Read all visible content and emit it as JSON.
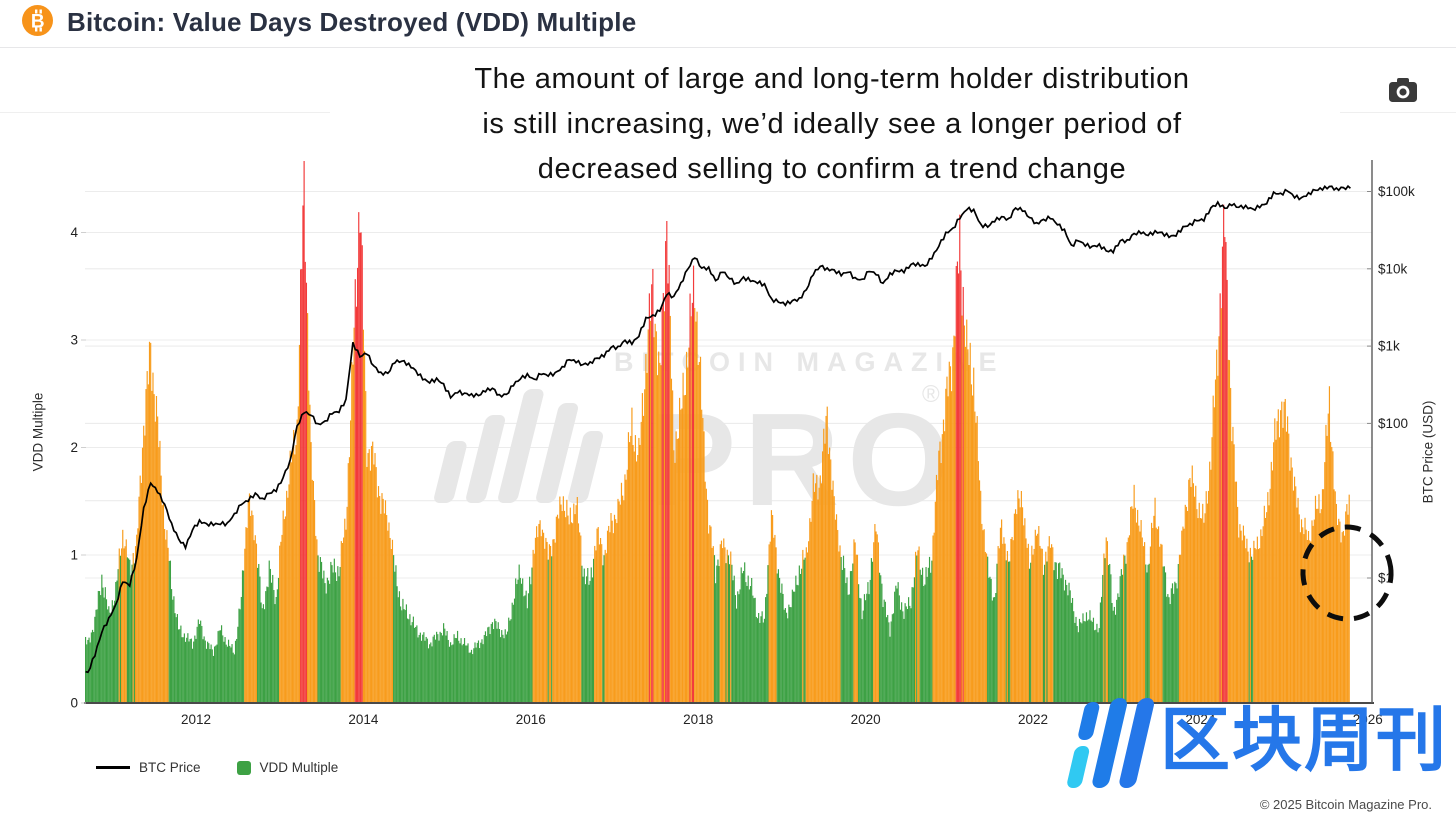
{
  "header": {
    "title": "Bitcoin: Value Days Destroyed (VDD) Multiple"
  },
  "toolbar": {
    "camera_icon": "camera-icon"
  },
  "annotation": {
    "lines": [
      "The amount of large and long-term holder distribution",
      "is still increasing, we’d ideally see a longer period of",
      "decreased selling to confirm a trend change"
    ]
  },
  "watermark": {
    "line1": "BITCOIN MAGAZINE",
    "line2": "PRO",
    "registered": "®"
  },
  "cn_watermark": {
    "text": "区块周刊"
  },
  "legend": [
    {
      "label": "BTC Price",
      "marker": "line",
      "color": "#000000"
    },
    {
      "label": "VDD Multiple",
      "marker": "square",
      "color": "#3DA144"
    }
  ],
  "footer": {
    "copyright": "© 2025 Bitcoin Magazine Pro."
  },
  "axes": {
    "left": {
      "title": "VDD Multiple",
      "ticks": [
        4,
        3,
        2,
        1,
        0
      ]
    },
    "right": {
      "title": "BTC Price (USD)",
      "ticks": [
        {
          "label": "$100k",
          "value": 100000
        },
        {
          "label": "$10k",
          "value": 10000
        },
        {
          "label": "$1k",
          "value": 1000
        },
        {
          "label": "$100",
          "value": 100
        },
        {
          "label": "$1",
          "value": 1
        }
      ]
    },
    "x": {
      "ticks": [
        2012,
        2014,
        2016,
        2018,
        2020,
        2022,
        2024,
        2026
      ]
    }
  },
  "colors": {
    "bar_green": "#3DA144",
    "bar_orange": "#F89C1C",
    "bar_red": "#F23B3B",
    "price_line": "#000000",
    "grid": "#ececec",
    "axis_line": "#4a4a4a",
    "watermark_gray": "#e7e7e7",
    "bitcoin_orange": "#F7931A",
    "cn_blue": "#2577e9",
    "cn_cyan": "#30c9f2"
  },
  "chart_data": {
    "type": "mixed",
    "x_start_month": "2010-07",
    "interval": "monthly",
    "x_range_years": [
      2010.67,
      2026.06
    ],
    "left_axis": {
      "label": "VDD Multiple",
      "ylim": [
        0,
        4.67
      ],
      "scale": "linear"
    },
    "right_axis": {
      "label": "BTC Price (USD)",
      "ylim": [
        0.024,
        250000
      ],
      "scale": "log"
    },
    "color_rule": {
      "green": "VDD < 1",
      "orange": "1 <= VDD < 3.3",
      "red": "VDD >= 3.3"
    },
    "highlight": "dashed circle around most recent months (mid/late 2025)",
    "series": [
      {
        "name": "BTC Price",
        "type": "line",
        "unit": "USD",
        "values": [
          0.06,
          0.06,
          0.06,
          0.1,
          0.2,
          0.3,
          0.45,
          0.9,
          0.8,
          1.8,
          8.0,
          17.0,
          13.0,
          9.0,
          5.0,
          3.2,
          2.5,
          4.2,
          5.5,
          5.0,
          4.9,
          5.0,
          5.1,
          6.7,
          9.0,
          10.0,
          12.4,
          10.5,
          12.5,
          13.5,
          20,
          33,
          93,
          139,
          128,
          97,
          106,
          135,
          141,
          204,
          1100,
          732,
          800,
          550,
          450,
          445,
          620,
          640,
          585,
          480,
          375,
          338,
          378,
          320,
          217,
          254,
          244,
          236,
          230,
          263,
          284,
          230,
          236,
          314,
          377,
          430,
          368,
          437,
          416,
          448,
          531,
          673,
          624,
          575,
          610,
          700,
          745,
          963,
          970,
          1180,
          1080,
          1350,
          2300,
          2480,
          2875,
          4700,
          4360,
          6450,
          9900,
          14100,
          10200,
          10300,
          7000,
          9240,
          7500,
          6400,
          7750,
          7000,
          6600,
          6300,
          4050,
          3740,
          3450,
          3850,
          4100,
          5350,
          8550,
          10800,
          10000,
          9600,
          8300,
          9150,
          7550,
          7200,
          9350,
          8550,
          6440,
          8650,
          9450,
          9140,
          11350,
          11650,
          10780,
          13800,
          19700,
          29000,
          33100,
          45100,
          58800,
          57750,
          37300,
          35000,
          41500,
          47100,
          43800,
          61300,
          57000,
          46200,
          38500,
          43200,
          45500,
          37650,
          31800,
          19900,
          23300,
          20050,
          19400,
          20500,
          17150,
          16550,
          23100,
          23150,
          28500,
          29250,
          27200,
          30450,
          29250,
          25950,
          26950,
          34650,
          37700,
          42250,
          42550,
          61150,
          71300,
          60650,
          67500,
          62650,
          64600,
          58950,
          63300,
          70200,
          96400,
          93400,
          102400,
          84350,
          82550,
          94200,
          104600,
          107100,
          115800,
          108200,
          112000,
          110000
        ]
      },
      {
        "name": "VDD Multiple",
        "type": "bar",
        "values": [
          0.35,
          0.45,
          0.4,
          0.55,
          0.85,
          0.6,
          0.75,
          1.2,
          0.9,
          1.1,
          2.2,
          2.9,
          2.2,
          1.3,
          0.8,
          0.5,
          0.45,
          0.4,
          0.55,
          0.4,
          0.35,
          0.5,
          0.4,
          0.35,
          0.7,
          1.5,
          1.2,
          0.6,
          0.9,
          0.7,
          1.3,
          1.8,
          2.2,
          4.5,
          1.9,
          1.0,
          0.8,
          0.9,
          0.9,
          1.3,
          2.8,
          4.35,
          2.0,
          1.9,
          1.5,
          1.35,
          0.9,
          0.65,
          0.6,
          0.5,
          0.45,
          0.4,
          0.45,
          0.5,
          0.4,
          0.45,
          0.4,
          0.35,
          0.4,
          0.45,
          0.55,
          0.5,
          0.45,
          0.7,
          0.9,
          0.65,
          1.1,
          1.3,
          1.0,
          1.2,
          1.55,
          1.3,
          1.5,
          0.9,
          0.8,
          1.2,
          1.0,
          1.3,
          1.4,
          1.7,
          2.2,
          1.9,
          2.8,
          3.5,
          2.6,
          4.15,
          2.0,
          2.3,
          2.9,
          3.55,
          2.4,
          1.3,
          0.9,
          1.1,
          1.0,
          0.7,
          0.9,
          0.8,
          0.6,
          0.55,
          1.35,
          0.9,
          0.6,
          0.7,
          0.9,
          1.0,
          1.6,
          1.7,
          2.3,
          1.45,
          1.0,
          0.75,
          1.1,
          0.6,
          0.8,
          1.25,
          0.7,
          0.5,
          0.8,
          0.6,
          0.7,
          1.05,
          0.8,
          1.0,
          1.9,
          2.4,
          2.9,
          3.9,
          2.9,
          2.65,
          1.5,
          0.9,
          0.7,
          1.3,
          0.9,
          1.45,
          1.5,
          0.9,
          1.25,
          0.95,
          1.1,
          0.9,
          0.85,
          0.7,
          0.5,
          0.6,
          0.55,
          0.5,
          1.2,
          0.6,
          0.8,
          1.1,
          1.55,
          1.2,
          0.9,
          1.45,
          1.0,
          0.7,
          0.8,
          1.2,
          1.75,
          1.5,
          1.3,
          1.9,
          2.95,
          4.1,
          2.2,
          1.3,
          1.1,
          1.0,
          1.15,
          1.4,
          2.0,
          2.4,
          2.2,
          1.6,
          1.3,
          1.15,
          1.4,
          1.55,
          2.45,
          1.35,
          1.2,
          1.55
        ]
      }
    ]
  }
}
